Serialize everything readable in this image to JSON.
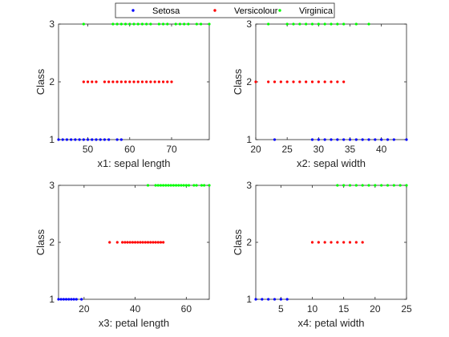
{
  "legend": {
    "entries": [
      {
        "label": "Setosa",
        "color": "#0000ff"
      },
      {
        "label": "Versicolour",
        "color": "#ff0000"
      },
      {
        "label": "Virginica",
        "color": "#00ff00"
      }
    ],
    "placement": "top-center"
  },
  "chart_data": [
    {
      "type": "scatter",
      "xlabel": "x1: sepal length",
      "ylabel": "Class",
      "xlim": [
        43,
        79
      ],
      "ylim": [
        1,
        3
      ],
      "xticks": [
        50,
        60,
        70
      ],
      "yticks": [
        1,
        2,
        3
      ],
      "series": [
        {
          "name": "Setosa",
          "color": "#0000ff",
          "class": 1,
          "x": [
            43,
            44,
            45,
            46,
            47,
            48,
            49,
            50,
            51,
            52,
            53,
            54,
            55,
            57,
            58
          ]
        },
        {
          "name": "Versicolour",
          "color": "#ff0000",
          "class": 2,
          "x": [
            49,
            50,
            51,
            52,
            54,
            55,
            56,
            57,
            58,
            59,
            60,
            61,
            62,
            63,
            64,
            65,
            66,
            67,
            68,
            69,
            70
          ]
        },
        {
          "name": "Virginica",
          "color": "#00ff00",
          "class": 3,
          "x": [
            49,
            56,
            57,
            58,
            59,
            60,
            61,
            62,
            63,
            64,
            65,
            67,
            68,
            69,
            71,
            72,
            73,
            74,
            76,
            77,
            79
          ]
        }
      ]
    },
    {
      "type": "scatter",
      "xlabel": "x2: sepal width",
      "ylabel": "Class",
      "xlim": [
        20,
        44
      ],
      "ylim": [
        1,
        3
      ],
      "xticks": [
        20,
        25,
        30,
        35,
        40
      ],
      "yticks": [
        1,
        2,
        3
      ],
      "series": [
        {
          "name": "Setosa",
          "color": "#0000ff",
          "class": 1,
          "x": [
            23,
            29,
            30,
            31,
            32,
            33,
            34,
            35,
            36,
            37,
            38,
            39,
            40,
            41,
            42,
            44
          ]
        },
        {
          "name": "Versicolour",
          "color": "#ff0000",
          "class": 2,
          "x": [
            20,
            22,
            23,
            24,
            25,
            26,
            27,
            28,
            29,
            30,
            31,
            32,
            33,
            34
          ]
        },
        {
          "name": "Virginica",
          "color": "#00ff00",
          "class": 3,
          "x": [
            22,
            25,
            26,
            27,
            28,
            29,
            30,
            31,
            32,
            33,
            34,
            36,
            38
          ]
        }
      ]
    },
    {
      "type": "scatter",
      "xlabel": "x3: petal length",
      "ylabel": "Class",
      "xlim": [
        10,
        69
      ],
      "ylim": [
        1,
        3
      ],
      "xticks": [
        20,
        40,
        60
      ],
      "yticks": [
        1,
        2,
        3
      ],
      "series": [
        {
          "name": "Setosa",
          "color": "#0000ff",
          "class": 1,
          "x": [
            10,
            11,
            12,
            13,
            14,
            15,
            16,
            17,
            19
          ]
        },
        {
          "name": "Versicolour",
          "color": "#ff0000",
          "class": 2,
          "x": [
            30,
            33,
            35,
            36,
            37,
            38,
            39,
            40,
            41,
            42,
            43,
            44,
            45,
            46,
            47,
            48,
            49,
            50,
            51
          ]
        },
        {
          "name": "Virginica",
          "color": "#00ff00",
          "class": 3,
          "x": [
            45,
            48,
            49,
            50,
            51,
            52,
            53,
            54,
            55,
            56,
            57,
            58,
            59,
            60,
            61,
            63,
            64,
            66,
            67,
            69
          ]
        }
      ]
    },
    {
      "type": "scatter",
      "xlabel": "x4: petal width",
      "ylabel": "Class",
      "xlim": [
        1,
        25
      ],
      "ylim": [
        1,
        3
      ],
      "xticks": [
        5,
        10,
        15,
        20,
        25
      ],
      "yticks": [
        1,
        2,
        3
      ],
      "series": [
        {
          "name": "Setosa",
          "color": "#0000ff",
          "class": 1,
          "x": [
            1,
            2,
            3,
            4,
            5,
            6
          ]
        },
        {
          "name": "Versicolour",
          "color": "#ff0000",
          "class": 2,
          "x": [
            10,
            11,
            12,
            13,
            14,
            15,
            16,
            17,
            18
          ]
        },
        {
          "name": "Virginica",
          "color": "#00ff00",
          "class": 3,
          "x": [
            14,
            15,
            16,
            17,
            18,
            19,
            20,
            21,
            22,
            23,
            24,
            25
          ]
        }
      ]
    }
  ]
}
